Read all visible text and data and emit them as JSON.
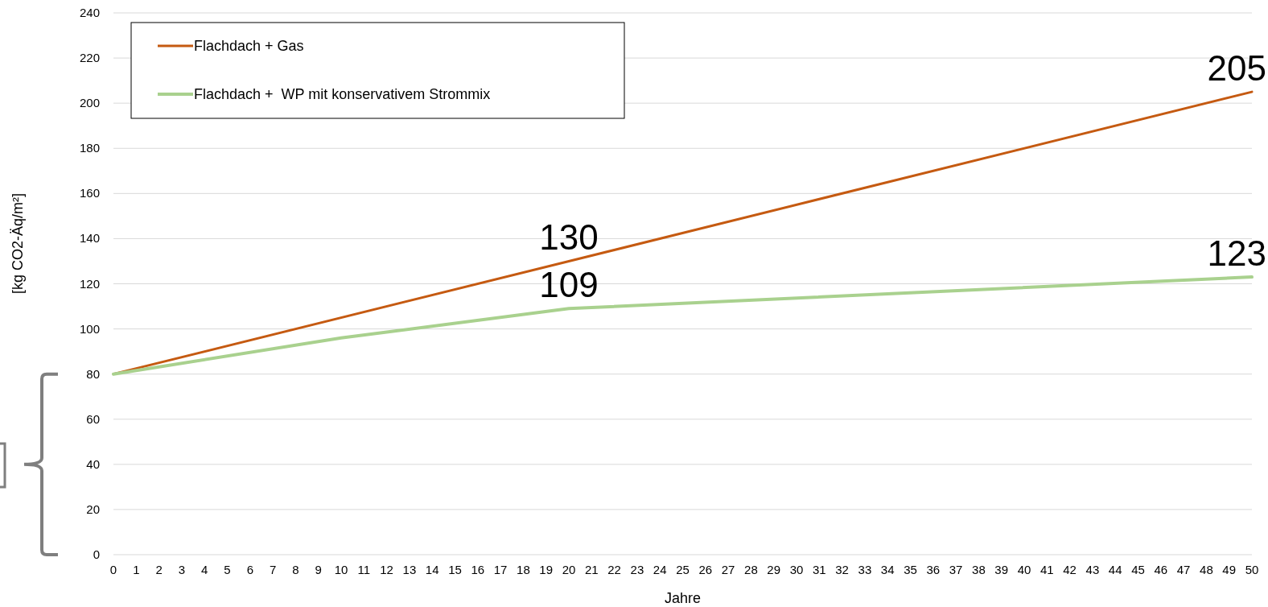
{
  "chart_data": {
    "type": "line",
    "xlabel": "Jahre",
    "ylabel": "[kg CO2-Äq/m²]",
    "xlim": [
      0,
      50
    ],
    "xticks": [
      0,
      1,
      2,
      3,
      4,
      5,
      6,
      7,
      8,
      9,
      10,
      11,
      12,
      13,
      14,
      15,
      16,
      17,
      18,
      19,
      20,
      21,
      22,
      23,
      24,
      25,
      26,
      27,
      28,
      29,
      30,
      31,
      32,
      33,
      34,
      35,
      36,
      37,
      38,
      39,
      40,
      41,
      42,
      43,
      44,
      45,
      46,
      47,
      48,
      49,
      50
    ],
    "ylim": [
      0,
      240
    ],
    "yticks": [
      0,
      20,
      40,
      60,
      80,
      100,
      120,
      140,
      160,
      180,
      200,
      220,
      240
    ],
    "grid": "y",
    "legend": "top left",
    "marker": "none",
    "line_style": "solid",
    "series": [
      {
        "name": "Flachdach + Gas",
        "color": "#c55a11",
        "x": [
          0,
          20,
          50
        ],
        "values": [
          80,
          130,
          205
        ],
        "value_labels": [
          null,
          "130",
          "205"
        ]
      },
      {
        "name": "Flachdach +  WP mit konservativem Strommix",
        "color": "#a9d18e",
        "x": [
          0,
          10,
          20,
          50
        ],
        "values": [
          80,
          96,
          109,
          123
        ],
        "value_labels": [
          null,
          null,
          "109",
          "123"
        ]
      }
    ]
  }
}
